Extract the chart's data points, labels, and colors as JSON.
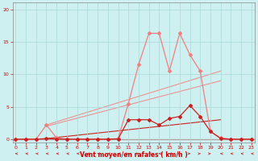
{
  "xlabel": "Vent moyen/en rafales ( km/h )",
  "background_color": "#cef0f0",
  "grid_color": "#a8d8d8",
  "x_ticks": [
    0,
    1,
    2,
    3,
    4,
    5,
    6,
    7,
    8,
    9,
    10,
    11,
    12,
    13,
    14,
    15,
    16,
    17,
    18,
    19,
    20,
    21,
    22,
    23
  ],
  "y_ticks": [
    0,
    5,
    10,
    15,
    20
  ],
  "ylim": [
    -0.5,
    21
  ],
  "xlim": [
    -0.3,
    23.3
  ],
  "line1_x": [
    0,
    1,
    2,
    3,
    4,
    5,
    6,
    7,
    8,
    9,
    10,
    11,
    12,
    13,
    14,
    15,
    16,
    17,
    18,
    19,
    20,
    21,
    22,
    23
  ],
  "line1_y": [
    0,
    0,
    0,
    2.2,
    0.2,
    0,
    0,
    0,
    0,
    0,
    0.1,
    5.5,
    11.5,
    16.3,
    16.3,
    10.5,
    16.3,
    13.0,
    10.5,
    1.2,
    0.2,
    0,
    0,
    0
  ],
  "line1_color": "#f08080",
  "line1_marker": "D",
  "line1_markersize": 2,
  "line1_lw": 0.9,
  "line2_x": [
    0,
    1,
    2,
    3,
    4,
    5,
    6,
    7,
    8,
    9,
    10,
    11,
    12,
    13,
    14,
    15,
    16,
    17,
    18,
    19,
    20,
    21,
    22,
    23
  ],
  "line2_y": [
    0,
    0,
    0,
    0.1,
    0.05,
    0,
    0,
    0,
    0,
    0,
    0.05,
    3.0,
    3.0,
    3.0,
    2.2,
    3.2,
    3.5,
    5.2,
    3.5,
    1.2,
    0.1,
    0,
    0,
    0
  ],
  "line2_color": "#cc2020",
  "line2_marker": "D",
  "line2_markersize": 2,
  "line2_lw": 0.9,
  "trend1_x": [
    3,
    20
  ],
  "trend1_y": [
    2.2,
    10.5
  ],
  "trend1_color": "#f09090",
  "trend1_lw": 0.8,
  "trend2_x": [
    3,
    20
  ],
  "trend2_y": [
    2.0,
    9.0
  ],
  "trend2_color": "#f09090",
  "trend2_lw": 0.8,
  "trend3_x": [
    3,
    20
  ],
  "trend3_y": [
    0.1,
    3.0
  ],
  "trend3_color": "#cc2020",
  "trend3_lw": 0.8,
  "hline_color": "#cc2020",
  "hline_lw": 0.8,
  "arrow_color": "#cc2020",
  "spine_color": "#888888"
}
